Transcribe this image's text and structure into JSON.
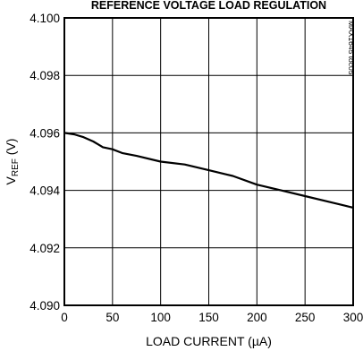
{
  "chart_data": {
    "type": "line",
    "title": "REFERENCE VOLTAGE LOAD REGULATION",
    "xlabel": "LOAD CURRENT (µA)",
    "ylabel_main": "V",
    "ylabel_sub": "REF",
    "ylabel_unit": " (V)",
    "figure_tag": "MAX1645 toc05",
    "xlim": [
      0,
      300
    ],
    "ylim": [
      4.09,
      4.1
    ],
    "x_ticks": [
      0,
      50,
      100,
      150,
      200,
      250,
      300
    ],
    "x_tick_labels": [
      "0",
      "50",
      "100",
      "150",
      "200",
      "250",
      "300"
    ],
    "y_ticks": [
      4.09,
      4.092,
      4.094,
      4.096,
      4.098,
      4.1
    ],
    "y_tick_labels": [
      "4.090",
      "4.092",
      "4.094",
      "4.096",
      "4.098",
      "4.100"
    ],
    "grid": true,
    "series": [
      {
        "x": [
          0,
          10,
          20,
          30,
          35,
          40,
          50,
          60,
          75,
          100,
          125,
          150,
          175,
          200,
          225,
          250,
          275,
          300
        ],
        "y": [
          4.096,
          4.09595,
          4.09585,
          4.0957,
          4.0956,
          4.0955,
          4.09543,
          4.0953,
          4.0952,
          4.095,
          4.0949,
          4.0947,
          4.0945,
          4.0942,
          4.094,
          4.0938,
          4.0936,
          4.0934
        ]
      }
    ]
  }
}
